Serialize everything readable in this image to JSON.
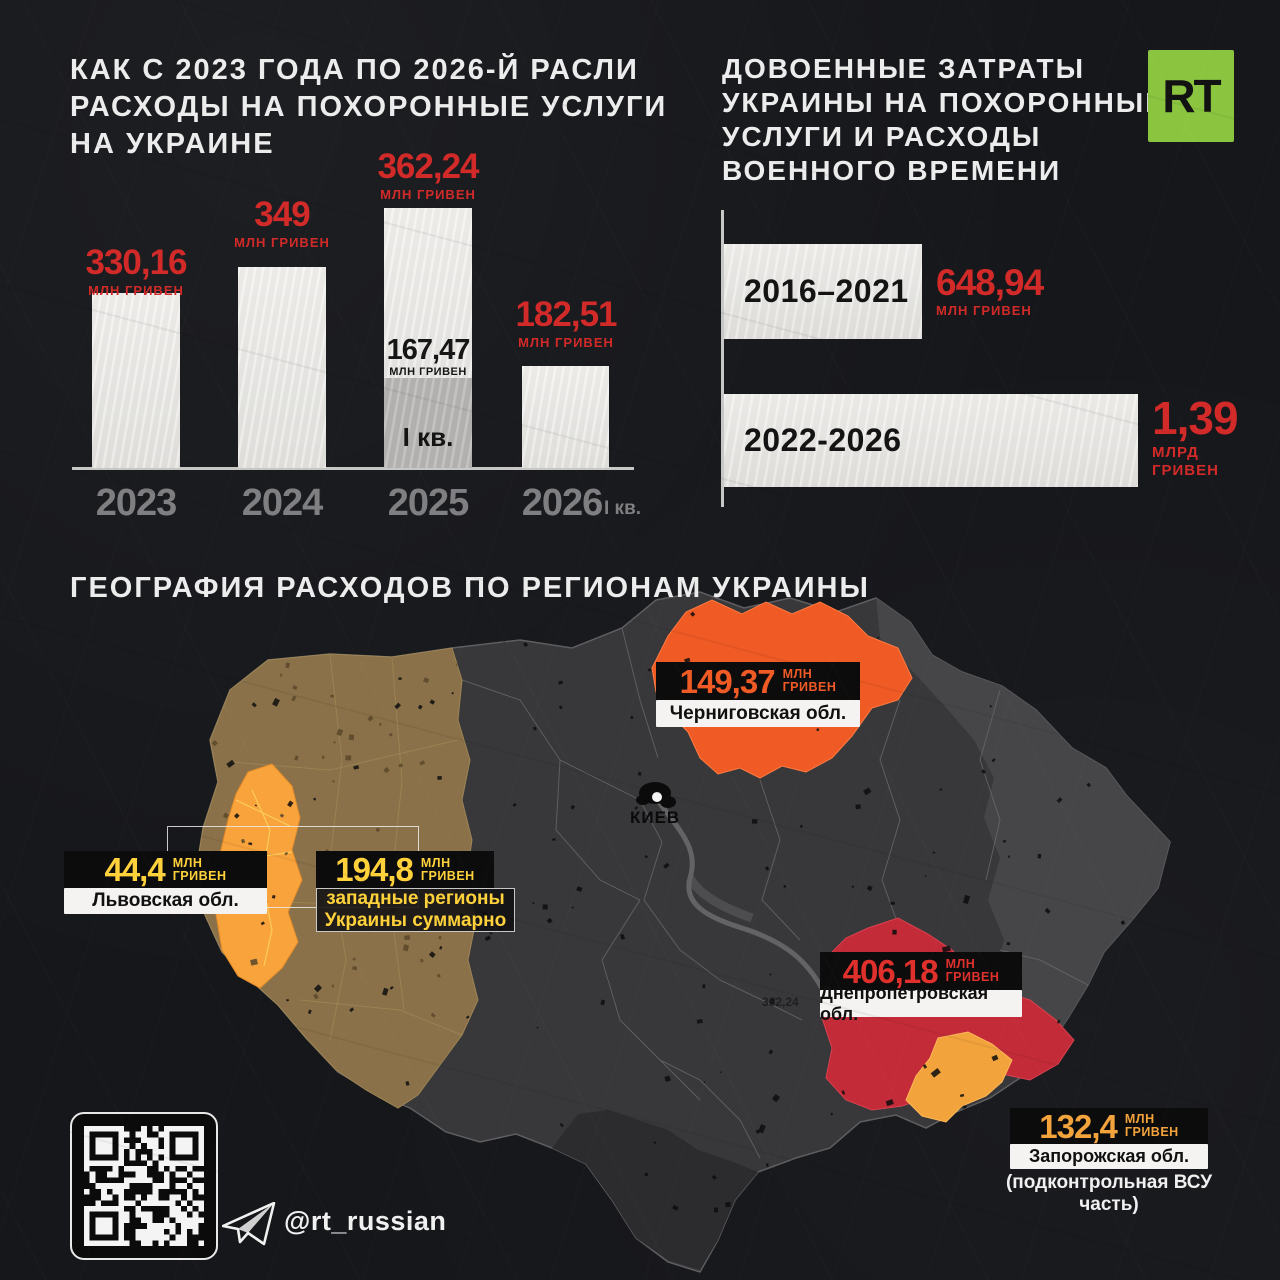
{
  "left_chart": {
    "title_lines": [
      "КАК С 2023 ГОДА ПО 2026-Й РАСЛИ",
      "РАСХОДЫ НА ПОХОРОННЫЕ УСЛУГИ",
      "НА УКРАИНЕ"
    ],
    "bars": [
      {
        "year": "2023",
        "value": "330,16",
        "unit": "МЛН ГРИВЕН"
      },
      {
        "year": "2024",
        "value": "349",
        "unit": "МЛН ГРИВЕН"
      },
      {
        "year": "2025",
        "value": "362,24",
        "unit": "МЛН ГРИВЕН",
        "sub_value": "167,47",
        "sub_unit": "МЛН ГРИВЕН",
        "sub_quarter": "I кв."
      },
      {
        "year": "2026",
        "value": "182,51",
        "unit": "МЛН ГРИВЕН",
        "year_suffix": "I кв."
      }
    ]
  },
  "right_chart": {
    "title_lines": [
      "ДОВОЕННЫЕ ЗАТРАТЫ",
      "УКРАИНЫ НА ПОХОРОННЫЕ",
      "УСЛУГИ И РАСХОДЫ",
      "ВОЕННОГО ВРЕМЕНИ"
    ],
    "bars": [
      {
        "label": "2016–2021",
        "value": "648,94",
        "unit_lines": [
          "МЛН ГРИВЕН"
        ]
      },
      {
        "label": "2022-2026",
        "value": "1,39",
        "unit_lines": [
          "МЛРД",
          "ГРИВЕН"
        ]
      }
    ]
  },
  "logo": {
    "text": "RT"
  },
  "map": {
    "title": "ГЕОГРАФИЯ РАСХОДОВ ПО РЕГИОНАМ УКРАИНЫ",
    "city": "КИЕВ",
    "watermark": "362,24",
    "regions": [
      {
        "name": "Черниговская обл.",
        "value": "149,37",
        "unit_lines": [
          "МЛН",
          "ГРИВЕН"
        ],
        "color": "#f05a24"
      },
      {
        "name": "Львовская обл.",
        "value": "44,4",
        "unit_lines": [
          "МЛН",
          "ГРИВЕН"
        ],
        "color": "#ffd23c"
      },
      {
        "name_lines": [
          "западные регионы",
          "Украины суммарно"
        ],
        "value": "194,8",
        "unit_lines": [
          "МЛН",
          "ГРИВЕН"
        ],
        "color": "#ffd23c"
      },
      {
        "name": "Днепропетровская обл.",
        "value": "406,18",
        "unit_lines": [
          "МЛН",
          "ГРИВЕН"
        ],
        "color": "#e0302c"
      },
      {
        "name": "Запорожская обл.",
        "value": "132,4",
        "unit_lines": [
          "МЛН",
          "ГРИВЕН"
        ],
        "color": "#f2a33c",
        "note_lines": [
          "(подконтрольная ВСУ",
          "часть)"
        ]
      }
    ]
  },
  "footer": {
    "telegram_handle": "@rt_russian"
  },
  "chart_data": [
    {
      "type": "bar",
      "title": "КАК С 2023 ГОДА ПО 2026-Й РАСЛИ РАСХОДЫ НА ПОХОРОННЫЕ УСЛУГИ НА УКРАИНЕ",
      "categories": [
        "2023",
        "2024",
        "2025",
        "2026 (I кв.)"
      ],
      "values": [
        330.16,
        349,
        362.24,
        182.51
      ],
      "unit": "млн гривен",
      "annotations": [
        {
          "category": "2025",
          "label": "I кв.",
          "value": 167.47
        }
      ],
      "bar_color": "#e8e7e4",
      "value_label_color": "#d22a28",
      "grid": false
    },
    {
      "type": "bar",
      "orientation": "horizontal",
      "title": "ДОВОЕННЫЕ ЗАТРАТЫ УКРАИНЫ НА ПОХОРОННЫЕ УСЛУГИ И РАСХОДЫ ВОЕННОГО ВРЕМЕНИ",
      "categories": [
        "2016–2021",
        "2022-2026"
      ],
      "values": [
        648.94,
        1390
      ],
      "value_labels": [
        "648,94 млн гривен",
        "1,39 млрд гривен"
      ],
      "unit": "млн гривен",
      "bar_color": "#e8e7e4",
      "grid": false
    },
    {
      "type": "table",
      "title": "ГЕОГРАФИЯ РАСХОДОВ ПО РЕГИОНАМ УКРАИНЫ",
      "unit": "млн гривен",
      "regions": [
        {
          "name": "Черниговская обл.",
          "value": 149.37
        },
        {
          "name": "Львовская обл.",
          "value": 44.4
        },
        {
          "name": "западные регионы Украины суммарно",
          "value": 194.8
        },
        {
          "name": "Днепропетровская обл.",
          "value": 406.18
        },
        {
          "name": "Запорожская обл. (подконтрольная ВСУ часть)",
          "value": 132.4
        }
      ]
    }
  ]
}
